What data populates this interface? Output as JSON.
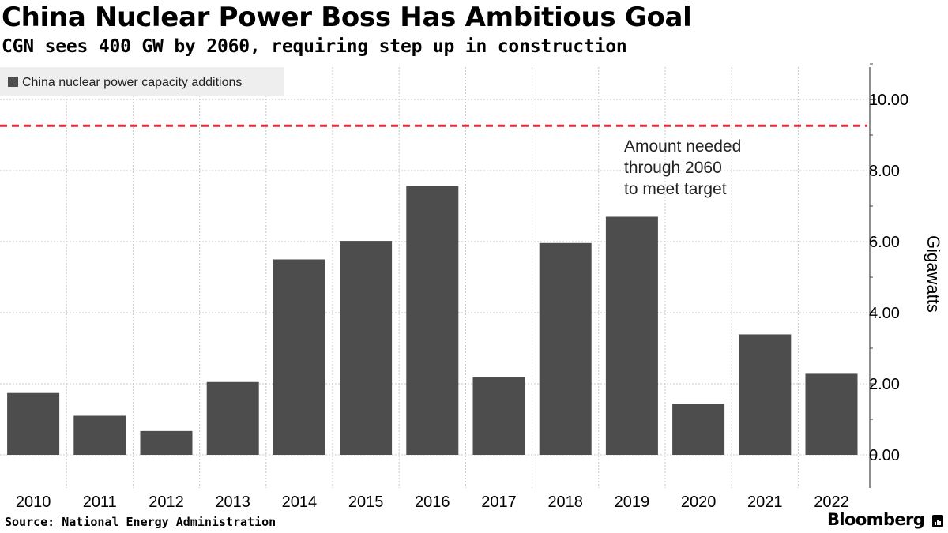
{
  "title": "China Nuclear Power Boss Has Ambitious Goal",
  "subtitle": "CGN sees 400 GW by 2060, requiring step up in construction",
  "source": "Source: National Energy Administration",
  "brand": "Bloomberg",
  "colors": {
    "bar": "#4d4d4d",
    "target_line": "#e8273d",
    "grid": "#c8c8c8",
    "legend_bg": "#eeeeee"
  },
  "chart_data": {
    "type": "bar",
    "title": "China Nuclear Power Boss Has Ambitious Goal",
    "categories": [
      "2010",
      "2011",
      "2012",
      "2013",
      "2014",
      "2015",
      "2016",
      "2017",
      "2018",
      "2019",
      "2020",
      "2021",
      "2022"
    ],
    "series": [
      {
        "name": "China nuclear power capacity additions",
        "values": [
          1.74,
          1.1,
          0.67,
          2.05,
          5.5,
          6.02,
          7.57,
          2.18,
          5.96,
          6.7,
          1.43,
          3.39,
          2.28
        ]
      }
    ],
    "ylabel": "Gigawatts",
    "xlabel": "",
    "ylim": [
      -0.95,
      11.0
    ],
    "yticks": [
      0,
      2,
      4,
      6,
      8,
      10
    ],
    "ytick_labels": [
      "0.00",
      "2.00",
      "4.00",
      "6.00",
      "8.00",
      "10.00"
    ],
    "reference_line": {
      "value": 9.26,
      "style": "dashed"
    },
    "annotation": {
      "lines": [
        "Amount needed",
        "through 2060",
        "to meet target"
      ]
    },
    "legend": "top-left",
    "grid": true
  }
}
